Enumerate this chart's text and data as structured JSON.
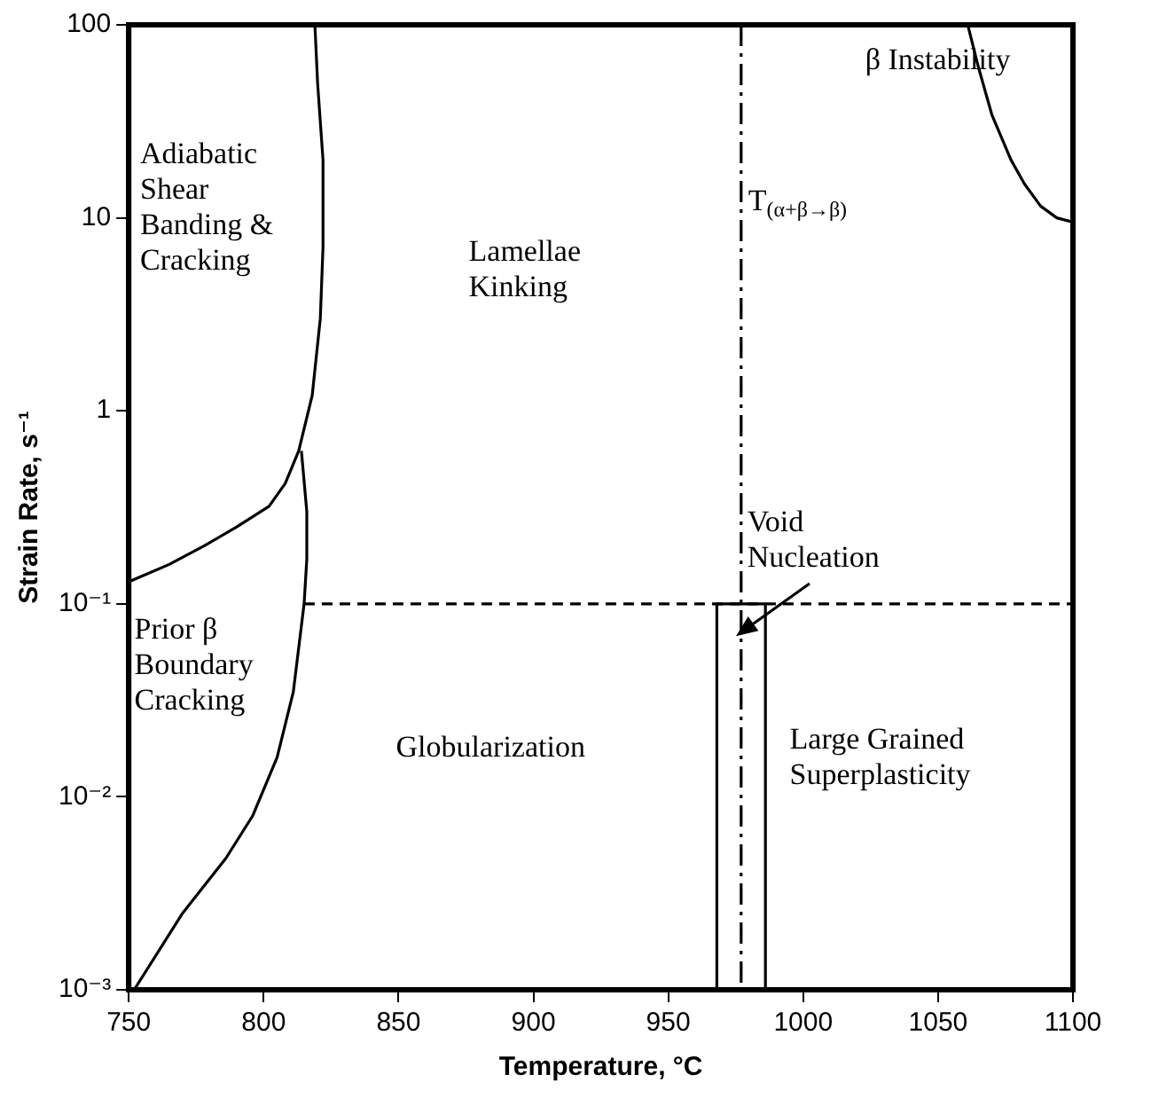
{
  "chart_data": {
    "type": "line",
    "xlabel": "Temperature, °C",
    "ylabel": "Strain Rate, s⁻¹",
    "log": "y",
    "xlim": [
      750,
      1100
    ],
    "xticks": [
      750,
      800,
      850,
      900,
      950,
      1000,
      1050,
      1100
    ],
    "ylim": [
      0.001,
      100
    ],
    "yticks": [
      {
        "value": 0.001,
        "label": "10⁻³"
      },
      {
        "value": 0.01,
        "label": "10⁻²"
      },
      {
        "value": 0.1,
        "label": "10⁻¹"
      },
      1,
      10,
      100
    ],
    "grid": false,
    "legend": false,
    "marker": "none",
    "line_style": "solid",
    "series": [
      {
        "color": "#000000",
        "x": [
          819,
          820,
          822,
          822,
          821,
          818,
          813,
          808,
          802,
          790,
          778,
          765,
          750
        ],
        "values": [
          100,
          50,
          20,
          7,
          3,
          1.2,
          0.62,
          0.42,
          0.32,
          0.25,
          0.2,
          0.16,
          0.13
        ]
      },
      {
        "color": "#000000",
        "x": [
          814,
          816,
          816,
          815,
          811,
          805,
          796,
          786,
          770,
          752
        ],
        "values": [
          0.62,
          0.3,
          0.17,
          0.1,
          0.035,
          0.016,
          0.008,
          0.0048,
          0.0025,
          0.001
        ]
      },
      {
        "color": "#000000",
        "x": [
          1061,
          1065,
          1070,
          1077,
          1082,
          1088,
          1094,
          1100
        ],
        "values": [
          100,
          60,
          34,
          20,
          15,
          11.5,
          10,
          9.5
        ]
      },
      {
        "color": "#000000",
        "x": [
          815,
          1100
        ],
        "values": [
          0.1,
          0.1
        ],
        "line_style": "dashed"
      },
      {
        "color": "#000000",
        "x": [
          968,
          968,
          986,
          986
        ],
        "values": [
          0.001,
          0.1,
          0.1,
          0.001
        ]
      }
    ],
    "ref_lines": [
      {
        "axis": "x",
        "value": 977,
        "label": "T$_{(α+β→β)}$",
        "line_style": "dashed",
        "color": "#000000"
      }
    ],
    "annotations": [
      "Adiabatic\nShear\nBanding &\nCracking",
      "Lamellae\nKinking",
      "β Instability",
      {
        "text": "Void\nNucleation",
        "x": 975,
        "y": 0.068
      },
      "Prior β\nBoundary\nCracking",
      "Globularization",
      "Large Grained\nSuperplasticity"
    ]
  }
}
